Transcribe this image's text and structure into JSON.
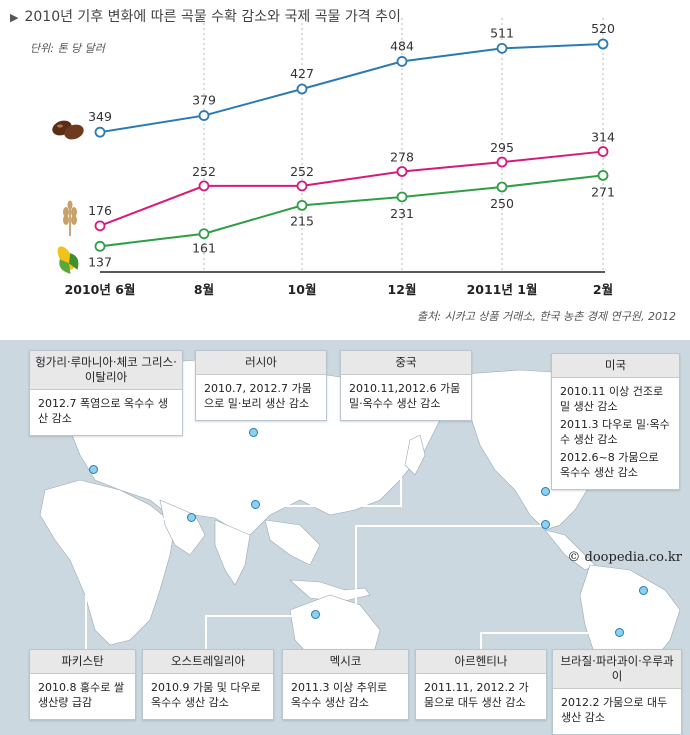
{
  "title": "2010년 기후 변화에 따른 곡물 수확 감소와 국제 곡물 가격 추이",
  "unit_label": "단위: 톤 당 달러",
  "source": "출처: 시카고 상품 거래소, 한국 농촌 경제 연구원, 2012",
  "chart_data": {
    "type": "line",
    "categories": [
      "2010년 6월",
      "8월",
      "10월",
      "12월",
      "2011년 1월",
      "2월"
    ],
    "series": [
      {
        "icon": "soybean-icon",
        "color": "#2a7ab5",
        "values": [
          349,
          379,
          427,
          484,
          511,
          520
        ]
      },
      {
        "icon": "wheat-icon",
        "color": "#d6197c",
        "values": [
          176,
          252,
          252,
          278,
          295,
          314
        ]
      },
      {
        "icon": "corn-icon",
        "color": "#2f9e44",
        "values": [
          137,
          161,
          215,
          231,
          250,
          271
        ]
      }
    ],
    "grid": "vertical dashed",
    "legend": "icons at left"
  },
  "map": {
    "watermark": "© doopedia.co.kr",
    "boxes": [
      {
        "name": "europe",
        "title": "헝가리·루마니아·체코 그리스·이탈리아",
        "items": [
          "2012.7 폭염으로 옥수수 생산 감소"
        ]
      },
      {
        "name": "russia",
        "title": "러시아",
        "items": [
          "2010.7, 2012.7 가뭄으로 밀·보리 생산 감소"
        ]
      },
      {
        "name": "china",
        "title": "중국",
        "items": [
          "2010.11,2012.6 가뭄 밀·옥수수 생산 감소"
        ]
      },
      {
        "name": "usa",
        "title": "미국",
        "items": [
          "2010.11 이상 건조로 밀 생산 감소",
          "2011.3 다우로 밀·옥수수 생산 감소",
          "2012.6~8 가뭄으로 옥수수 생산 감소"
        ]
      },
      {
        "name": "pakistan",
        "title": "파키스탄",
        "items": [
          "2010.8 홍수로 쌀 생산량 급감"
        ]
      },
      {
        "name": "australia",
        "title": "오스트레일리아",
        "items": [
          "2010.9 가뭄 및 다우로 옥수수 생산 감소"
        ]
      },
      {
        "name": "mexico",
        "title": "멕시코",
        "items": [
          "2011.3 이상 추위로 옥수수 생산 감소"
        ]
      },
      {
        "name": "argentina",
        "title": "아르헨티나",
        "items": [
          "2011.11, 2012.2 가뭄으로 대두 생산 감소"
        ]
      },
      {
        "name": "brazil",
        "title": "브라질·파라과이·우루과이",
        "items": [
          "2012.2 가뭄으로 대두 생산 감소"
        ]
      }
    ]
  }
}
